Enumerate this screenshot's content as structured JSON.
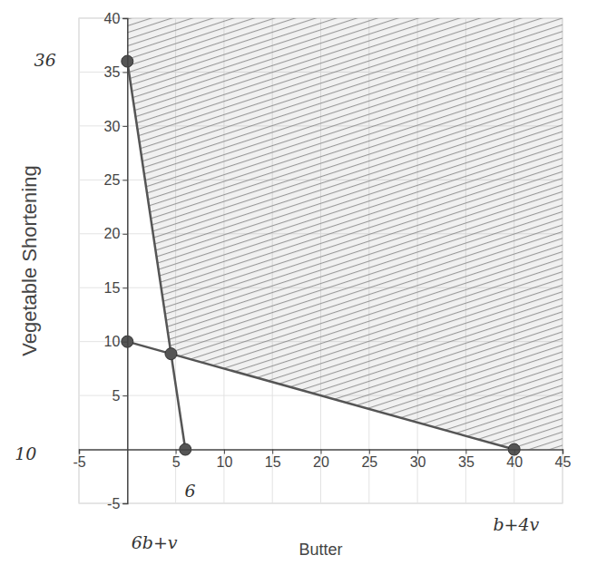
{
  "chart_data": {
    "type": "line",
    "x_label": "Butter",
    "y_label": "Vegetable Shortening",
    "xlim": [
      -5,
      45
    ],
    "ylim": [
      -5,
      40
    ],
    "xticks": [
      -5,
      5,
      10,
      15,
      20,
      25,
      30,
      35,
      40,
      45
    ],
    "yticks": [
      -5,
      5,
      10,
      15,
      20,
      25,
      30,
      35,
      40
    ],
    "grid": true,
    "series": [
      {
        "type": "area",
        "color": "#8a8a8a",
        "x": [
          0,
          0,
          45,
          45,
          40,
          4.52
        ],
        "values": [
          36,
          40,
          40,
          0,
          0,
          8.87
        ]
      },
      {
        "type": "line",
        "color": "#555555",
        "x": [
          0,
          6
        ],
        "values": [
          36,
          0
        ]
      },
      {
        "type": "line",
        "color": "#555555",
        "x": [
          0,
          40
        ],
        "values": [
          10,
          0
        ]
      },
      {
        "type": "scatter",
        "color": "#555555",
        "marker": "circle",
        "x": [
          0,
          0,
          4.52,
          40,
          6
        ],
        "values": [
          36,
          10,
          8.87,
          0,
          0
        ]
      }
    ],
    "annotations": [
      {
        "text": "36",
        "x": -8.5,
        "y": 36
      },
      {
        "text": "10",
        "x": -10.5,
        "y": -0.5
      },
      {
        "text": "6",
        "x": 6.5,
        "y": -4
      },
      {
        "text": "6b+v",
        "x": 2.8,
        "y": -8.8
      },
      {
        "text": "b+4v",
        "x": 40.2,
        "y": -7.1
      }
    ]
  }
}
